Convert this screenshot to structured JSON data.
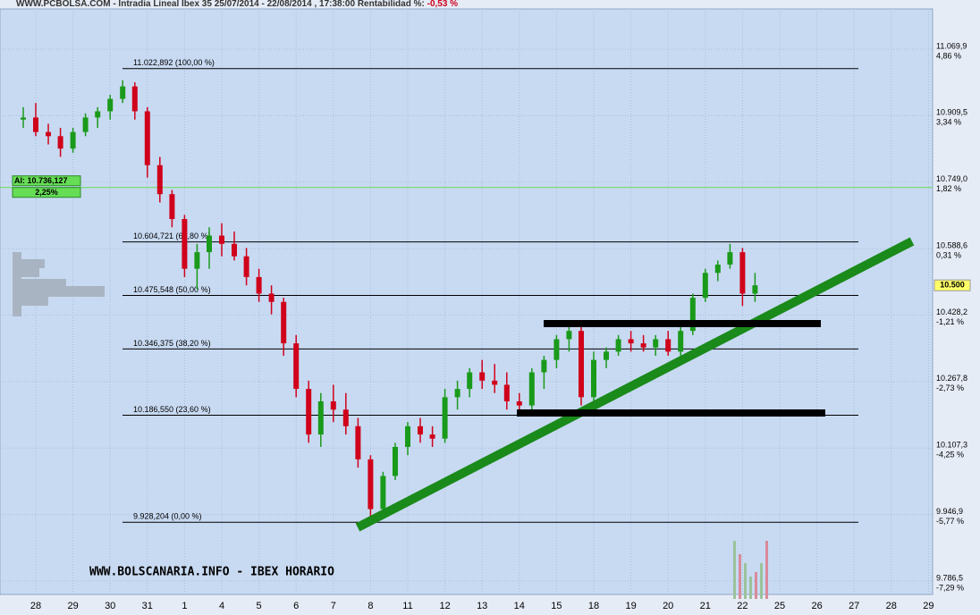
{
  "chart_data": {
    "type": "candlestick",
    "title": "WWW.PCBOLSA.COM - Intradia Lineal Ibex 35 25/07/2014 - 22/08/2014 , 17:38:00 Rentabilidad %:",
    "title_return": "-0,53 %",
    "watermark": "WWW.BOLSCANARIA.INFO - IBEX HORARIO",
    "categories": [
      "28",
      "29",
      "30",
      "31",
      "1",
      "4",
      "5",
      "6",
      "7",
      "8",
      "11",
      "12",
      "13",
      "14",
      "15",
      "18",
      "19",
      "20",
      "21",
      "22",
      "25",
      "26",
      "27",
      "28",
      "29"
    ],
    "candles": [
      [
        [
          10900,
          10930,
          10880,
          10905
        ],
        [
          10905,
          10940,
          10860,
          10870
        ],
        [
          10870,
          10890,
          10840,
          10860
        ]
      ],
      [
        [
          10860,
          10880,
          10810,
          10830
        ],
        [
          10830,
          10880,
          10820,
          10870
        ],
        [
          10870,
          10915,
          10860,
          10905
        ]
      ],
      [
        [
          10905,
          10930,
          10880,
          10920
        ],
        [
          10920,
          10960,
          10900,
          10950
        ],
        [
          10950,
          10995,
          10940,
          10980
        ]
      ],
      [
        [
          10980,
          10990,
          10900,
          10920
        ],
        [
          10920,
          10930,
          10760,
          10790
        ],
        [
          10790,
          10810,
          10700,
          10720
        ]
      ],
      [
        [
          10720,
          10730,
          10640,
          10660
        ],
        [
          10660,
          10670,
          10520,
          10540
        ],
        [
          10540,
          10600,
          10490,
          10580
        ]
      ],
      [
        [
          10580,
          10640,
          10540,
          10620
        ],
        [
          10620,
          10650,
          10570,
          10600
        ],
        [
          10600,
          10630,
          10560,
          10570
        ]
      ],
      [
        [
          10570,
          10590,
          10500,
          10520
        ],
        [
          10520,
          10540,
          10460,
          10480
        ],
        [
          10480,
          10500,
          10430,
          10460
        ]
      ],
      [
        [
          10460,
          10470,
          10330,
          10360
        ],
        [
          10360,
          10380,
          10230,
          10250
        ],
        [
          10250,
          10270,
          10120,
          10140
        ]
      ],
      [
        [
          10140,
          10240,
          10110,
          10220
        ],
        [
          10220,
          10260,
          10170,
          10200
        ],
        [
          10200,
          10240,
          10140,
          10160
        ]
      ],
      [
        [
          10160,
          10180,
          10060,
          10080
        ],
        [
          10080,
          10090,
          9928,
          9960
        ],
        [
          9960,
          10050,
          9950,
          10040
        ]
      ],
      [
        [
          10040,
          10120,
          10030,
          10110
        ],
        [
          10110,
          10170,
          10090,
          10160
        ],
        [
          10160,
          10180,
          10120,
          10140
        ]
      ],
      [
        [
          10140,
          10160,
          10110,
          10130
        ],
        [
          10130,
          10250,
          10120,
          10230
        ],
        [
          10230,
          10270,
          10200,
          10250
        ]
      ],
      [
        [
          10250,
          10300,
          10230,
          10290
        ],
        [
          10290,
          10320,
          10250,
          10270
        ],
        [
          10270,
          10310,
          10240,
          10260
        ]
      ],
      [
        [
          10260,
          10290,
          10200,
          10220
        ],
        [
          10220,
          10240,
          10190,
          10210
        ],
        [
          10210,
          10300,
          10200,
          10290
        ]
      ],
      [
        [
          10290,
          10330,
          10250,
          10320
        ],
        [
          10320,
          10380,
          10300,
          10370
        ],
        [
          10370,
          10400,
          10340,
          10390
        ]
      ],
      [
        [
          10390,
          10400,
          10210,
          10230
        ],
        [
          10230,
          10340,
          10220,
          10320
        ],
        [
          10320,
          10350,
          10300,
          10340
        ]
      ],
      [
        [
          10340,
          10380,
          10330,
          10370
        ],
        [
          10370,
          10390,
          10340,
          10360
        ],
        [
          10360,
          10380,
          10340,
          10350
        ]
      ],
      [
        [
          10350,
          10380,
          10330,
          10370
        ],
        [
          10370,
          10390,
          10330,
          10340
        ],
        [
          10340,
          10400,
          10330,
          10390
        ]
      ],
      [
        [
          10390,
          10480,
          10380,
          10470
        ],
        [
          10470,
          10540,
          10460,
          10530
        ],
        [
          10530,
          10560,
          10510,
          10550
        ]
      ],
      [
        [
          10550,
          10600,
          10540,
          10580
        ],
        [
          10580,
          10590,
          10450,
          10480
        ],
        [
          10480,
          10530,
          10460,
          10500
        ]
      ],
      null,
      null,
      null,
      null,
      null
    ],
    "up_color": "#1a9a1a",
    "down_color": "#d0021b",
    "ylim": [
      9754,
      11167
    ],
    "yticks": [
      {
        "value": 11069.9,
        "label": "11.069,9"
      },
      {
        "value": 10909.5,
        "label": "10.909,5"
      },
      {
        "value": 10749.0,
        "label": "10.749,0"
      },
      {
        "value": 10588.6,
        "label": "10.588,6"
      },
      {
        "value": 10428.2,
        "label": "10.428,2"
      },
      {
        "value": 10267.8,
        "label": "10.267,8"
      },
      {
        "value": 10107.3,
        "label": "10.107,3"
      },
      {
        "value": 9946.9,
        "label": "9.946,9"
      },
      {
        "value": 9786.5,
        "label": "9.786,5"
      }
    ],
    "ytick_returns": [
      "4,86 %",
      "3,34 %",
      "1,82 %",
      "0,31 %",
      "-1,21 %",
      "-2,73 %",
      "-4,25 %",
      "-5,77 %",
      "-7,29 %"
    ],
    "grid": true,
    "fib_levels": [
      {
        "value": 11022.892,
        "label": "11.022,892 (100,00 %)"
      },
      {
        "value": 10604.721,
        "label": "10.604,721 (61,80 %)"
      },
      {
        "value": 10475.548,
        "label": "10.475,548 (50,00 %)"
      },
      {
        "value": 10346.375,
        "label": "10.346,375 (38,20 %)"
      },
      {
        "value": 10186.55,
        "label": "10.186,550 (23,60 %)"
      },
      {
        "value": 9928.204,
        "label": "9.928,204 (0,00 %)"
      }
    ],
    "alert": {
      "value": 10736.127,
      "label": "Al: 10.736,127",
      "return_label": "2,25%"
    },
    "last_price": {
      "value": 10500,
      "label": "10.500"
    }
  }
}
